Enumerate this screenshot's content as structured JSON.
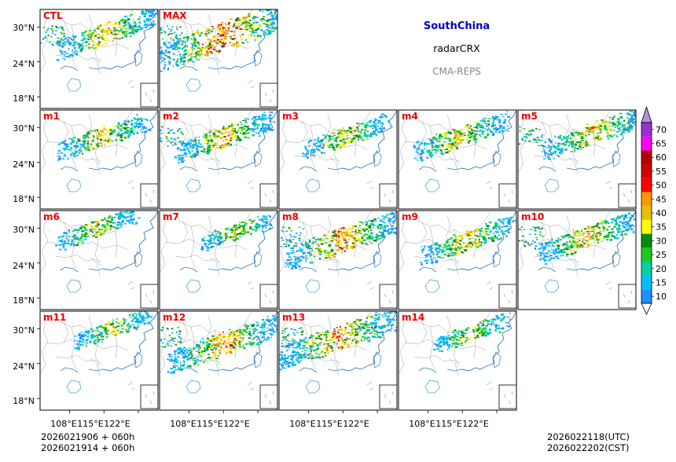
{
  "chart_data": {
    "type": "heatmap",
    "title": "SouthChina",
    "variable": "radarCRX",
    "system": "CMA-REPS",
    "panels": [
      {
        "label": "CTL",
        "coverage": 0.55,
        "center_lon": 115.5,
        "center_lat": 29.0
      },
      {
        "label": "MAX",
        "coverage": 1.0,
        "center_lon": 115.0,
        "center_lat": 28.5
      },
      {
        "label": "m1",
        "coverage": 0.45,
        "center_lon": 114.5,
        "center_lat": 28.5
      },
      {
        "label": "m2",
        "coverage": 0.55,
        "center_lon": 115.0,
        "center_lat": 28.5
      },
      {
        "label": "m3",
        "coverage": 0.4,
        "center_lon": 115.5,
        "center_lat": 28.5
      },
      {
        "label": "m4",
        "coverage": 0.5,
        "center_lon": 114.5,
        "center_lat": 28.5
      },
      {
        "label": "m5",
        "coverage": 0.55,
        "center_lon": 117.0,
        "center_lat": 29.0
      },
      {
        "label": "m6",
        "coverage": 0.35,
        "center_lon": 113.5,
        "center_lat": 30.0
      },
      {
        "label": "m7",
        "coverage": 0.25,
        "center_lon": 117.5,
        "center_lat": 29.5
      },
      {
        "label": "m8",
        "coverage": 0.75,
        "center_lon": 115.0,
        "center_lat": 28.0
      },
      {
        "label": "m9",
        "coverage": 0.5,
        "center_lon": 116.0,
        "center_lat": 28.0
      },
      {
        "label": "m10",
        "coverage": 0.6,
        "center_lon": 116.0,
        "center_lat": 28.5
      },
      {
        "label": "m11",
        "coverage": 0.3,
        "center_lon": 116.5,
        "center_lat": 30.0
      },
      {
        "label": "m12",
        "coverage": 0.7,
        "center_lon": 115.0,
        "center_lat": 27.5
      },
      {
        "label": "m13",
        "coverage": 0.8,
        "center_lon": 114.0,
        "center_lat": 28.5
      },
      {
        "label": "m14",
        "coverage": 0.3,
        "center_lon": 117.0,
        "center_lat": 29.5
      }
    ],
    "lon_range": [
      102,
      126
    ],
    "lat_range": [
      16,
      33
    ],
    "xticks": [
      "108°E",
      "115°E",
      "122°E"
    ],
    "yticks": [
      "30°N",
      "24°N",
      "18°N"
    ],
    "ytick_values": [
      30,
      24,
      18
    ],
    "xtick_values": [
      108,
      115,
      122
    ],
    "colorbar": {
      "levels": [
        "10",
        "15",
        "20",
        "25",
        "30",
        "35",
        "40",
        "45",
        "50",
        "55",
        "60",
        "65",
        "70"
      ],
      "colors": [
        "#1e90ff",
        "#00bfff",
        "#00d2a0",
        "#1ec81e",
        "#0a8a0a",
        "#ffff00",
        "#e6c000",
        "#ff9600",
        "#ff0000",
        "#d20000",
        "#b40000",
        "#ff00ff",
        "#9932cc"
      ],
      "over_color": "#b090e0"
    },
    "init_utc": "2026021906  +  060h",
    "init_cst": "2026021914  +  060h",
    "valid_utc": "2026022118(UTC)",
    "valid_cst": "2026022202(CST)"
  }
}
